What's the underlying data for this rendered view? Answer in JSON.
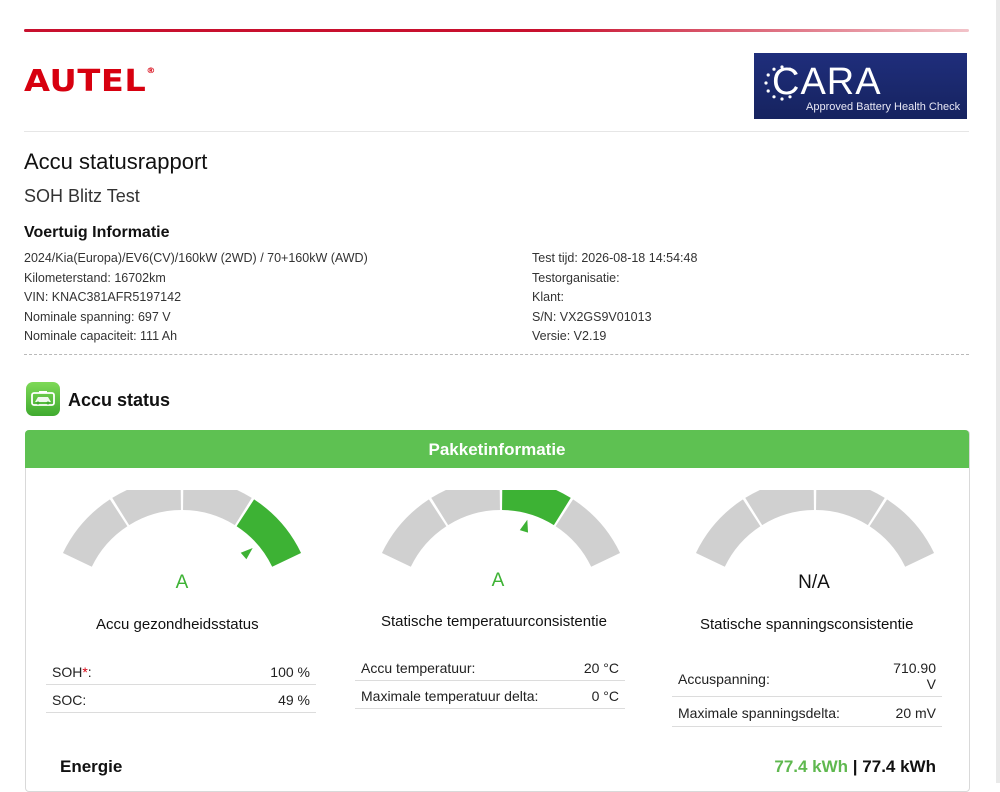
{
  "brand": {
    "logo_text": "AUTEL",
    "logo_mark": "®",
    "accent_color": "#d7000f"
  },
  "cara": {
    "title": "CARA",
    "subtitle": "Approved Battery Health Check",
    "color": "#1f2e7c"
  },
  "report": {
    "title": "Accu statusrapport",
    "subtitle": "SOH Blitz Test"
  },
  "vehicle": {
    "heading": "Voertuig Informatie",
    "left": [
      "2024/Kia(Europa)/EV6(CV)/160kW (2WD) / 70+160kW (AWD)",
      "Kilometerstand: 16702km",
      "VIN: KNAC381AFR5197142",
      "Nominale spanning: 697 V",
      "Nominale capaciteit: 111 Ah"
    ],
    "right": [
      "Test tijd: 2026-08-18 14:54:48",
      "Testorganisatie:",
      "Klant:",
      "S/N: VX2GS9V01013",
      "Versie: V2.19"
    ]
  },
  "status": {
    "title": "Accu status",
    "icon": "battery-car-icon",
    "panel_title": "Pakketinformatie",
    "panel_color": "#5ec152",
    "gauges": [
      {
        "grade": "A",
        "caption": "Accu gezondheidsstatus",
        "highlight_segment": 4,
        "rows": [
          {
            "key": "SOH",
            "required_mark": "*",
            "suffix": ":",
            "value": "100 %"
          },
          {
            "key": "SOC:",
            "value": "49 %"
          }
        ]
      },
      {
        "grade": "A",
        "caption": "Statische temperatuurconsistentie",
        "highlight_segment": 3,
        "rows": [
          {
            "key": "Accu temperatuur:",
            "value": "20 °C"
          },
          {
            "key": "Maximale temperatuur delta:",
            "value": "0 °C"
          }
        ]
      },
      {
        "grade": "N/A",
        "caption": "Statische spanningsconsistentie",
        "highlight_segment": null,
        "rows": [
          {
            "key": "Accuspanning:",
            "value_line1": "710.90",
            "value_line2": "V"
          },
          {
            "key": "Maximale spanningsdelta:",
            "value": "20 mV"
          }
        ]
      }
    ],
    "energy": {
      "label": "Energie",
      "value_current": "77.4 kWh",
      "separator": "|",
      "value_total": "77.4 kWh"
    }
  }
}
